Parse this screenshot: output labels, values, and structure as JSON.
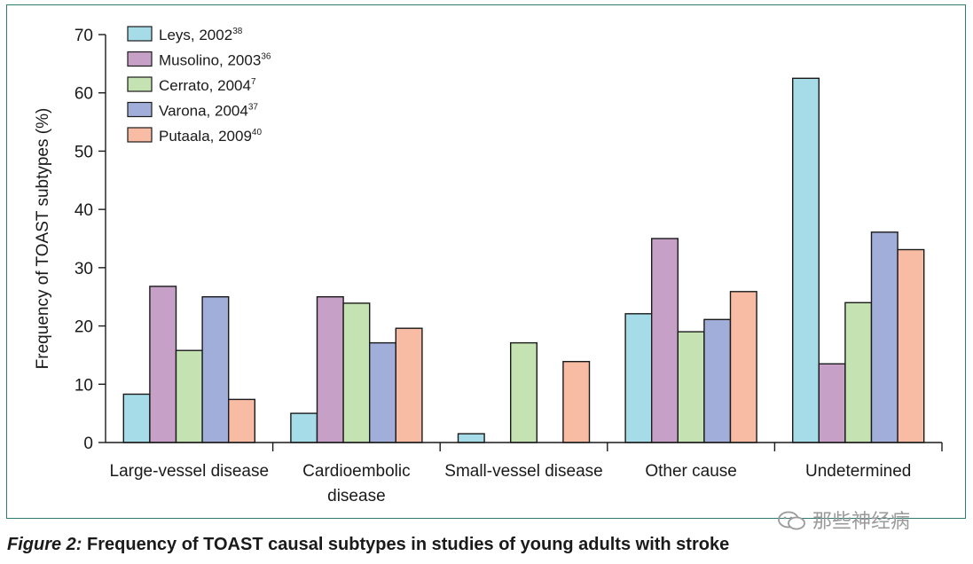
{
  "chart_data": {
    "type": "bar",
    "categories": [
      "Large-vessel disease",
      "Cardioembolic disease",
      "Small-vessel disease",
      "Other cause",
      "Undetermined"
    ],
    "category_label_lines": [
      [
        "Large-vessel disease"
      ],
      [
        "Cardioembolic",
        "disease"
      ],
      [
        "Small-vessel disease"
      ],
      [
        "Other cause"
      ],
      [
        "Undetermined"
      ]
    ],
    "series": [
      {
        "name": "Leys, 2002",
        "ref": "38",
        "color": "#a6dbe8",
        "values": [
          8.3,
          5.0,
          1.5,
          22.1,
          62.5
        ]
      },
      {
        "name": "Musolino, 2003",
        "ref": "36",
        "color": "#c7a0c8",
        "values": [
          26.8,
          25.0,
          0,
          35.0,
          13.5
        ]
      },
      {
        "name": "Cerrato, 2004",
        "ref": "7",
        "color": "#c5e3b2",
        "values": [
          15.8,
          23.9,
          17.1,
          19.0,
          24.0
        ]
      },
      {
        "name": "Varona, 2004",
        "ref": "37",
        "color": "#a1aed9",
        "values": [
          25.0,
          17.1,
          0,
          21.1,
          36.1
        ]
      },
      {
        "name": "Putaala, 2009",
        "ref": "40",
        "color": "#f8bca4",
        "values": [
          7.4,
          19.6,
          13.9,
          25.9,
          33.1
        ]
      }
    ],
    "ylabel": "Frequency of TOAST subtypes (%)",
    "xlabel": "",
    "ylim": [
      0,
      70
    ],
    "yticks": [
      0,
      10,
      20,
      30,
      40,
      50,
      60,
      70
    ],
    "legend_position": "top-left",
    "grid": false
  },
  "caption": {
    "figure_label": "Figure 2:",
    "text": " Frequency of TOAST causal subtypes in studies of young adults with stroke"
  },
  "watermark": {
    "text": "那些神经病"
  }
}
